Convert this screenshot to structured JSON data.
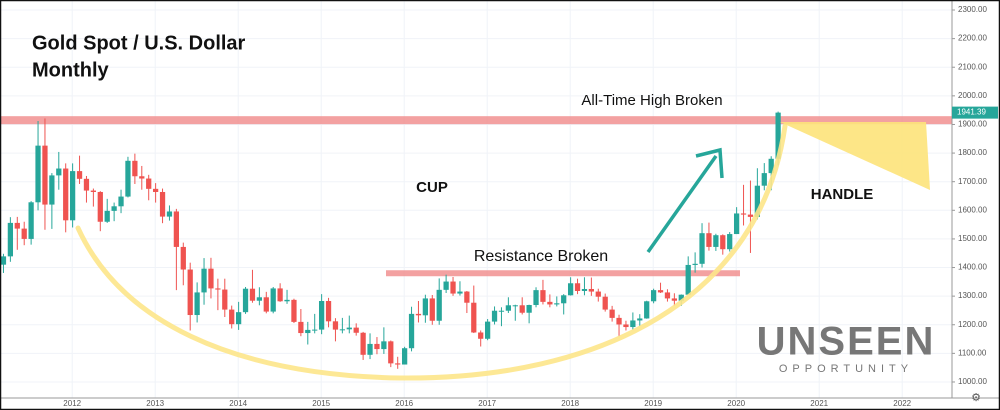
{
  "chart_data": {
    "type": "candlestick",
    "title": "Gold Spot / U.S. Dollar",
    "subtitle": "Monthly",
    "up_color": "#26a69a",
    "down_color": "#ef5350",
    "open": [
      1410,
      1439,
      1556,
      1536,
      1500,
      1628,
      1826,
      1620,
      1722,
      1746,
      1565,
      1737,
      1710,
      1669,
      1664,
      1560,
      1598,
      1614,
      1648,
      1773,
      1719,
      1711,
      1675,
      1664,
      1578,
      1596,
      1472,
      1393,
      1234,
      1313,
      1396,
      1327,
      1323,
      1253,
      1202,
      1244,
      1326,
      1284,
      1296,
      1246,
      1327,
      1282,
      1287,
      1210,
      1171,
      1182,
      1183,
      1283,
      1212,
      1183,
      1184,
      1190,
      1172,
      1095,
      1133,
      1115,
      1142,
      1065,
      1061,
      1118,
      1238,
      1233,
      1292,
      1214,
      1322,
      1351,
      1309,
      1316,
      1277,
      1173,
      1151,
      1211,
      1249,
      1249,
      1268,
      1268,
      1242,
      1269,
      1321,
      1280,
      1271,
      1275,
      1303,
      1345,
      1318,
      1325,
      1316,
      1298,
      1253,
      1224,
      1201,
      1192,
      1215,
      1222,
      1282,
      1321,
      1313,
      1292,
      1284,
      1305,
      1409,
      1413,
      1520,
      1472,
      1513,
      1464,
      1517,
      1589,
      1585,
      1577,
      1686,
      1730,
      1780
    ],
    "high": [
      1448,
      1576,
      1577,
      1560,
      1632,
      1912,
      1921,
      1730,
      1804,
      1764,
      1764,
      1791,
      1720,
      1676,
      1667,
      1640,
      1627,
      1672,
      1787,
      1798,
      1755,
      1724,
      1695,
      1676,
      1617,
      1605,
      1487,
      1417,
      1348,
      1433,
      1434,
      1361,
      1361,
      1267,
      1280,
      1332,
      1392,
      1331,
      1315,
      1332,
      1345,
      1322,
      1291,
      1255,
      1210,
      1238,
      1307,
      1294,
      1223,
      1224,
      1232,
      1205,
      1175,
      1170,
      1157,
      1191,
      1145,
      1088,
      1123,
      1263,
      1283,
      1305,
      1304,
      1362,
      1375,
      1367,
      1352,
      1318,
      1337,
      1180,
      1220,
      1264,
      1261,
      1296,
      1270,
      1296,
      1270,
      1331,
      1357,
      1306,
      1299,
      1307,
      1366,
      1361,
      1366,
      1365,
      1326,
      1309,
      1266,
      1235,
      1214,
      1243,
      1237,
      1284,
      1326,
      1347,
      1324,
      1310,
      1306,
      1439,
      1453,
      1555,
      1557,
      1518,
      1516,
      1524,
      1611,
      1689,
      1704,
      1747,
      1765,
      1789,
      1945
    ],
    "low": [
      1381,
      1420,
      1462,
      1478,
      1480,
      1600,
      1532,
      1535,
      1672,
      1523,
      1540,
      1692,
      1627,
      1613,
      1527,
      1556,
      1562,
      1590,
      1645,
      1692,
      1672,
      1635,
      1627,
      1555,
      1564,
      1321,
      1338,
      1180,
      1208,
      1270,
      1292,
      1251,
      1227,
      1187,
      1182,
      1238,
      1277,
      1268,
      1240,
      1240,
      1280,
      1273,
      1206,
      1160,
      1131,
      1170,
      1167,
      1191,
      1142,
      1170,
      1170,
      1162,
      1077,
      1080,
      1097,
      1098,
      1052,
      1046,
      1061,
      1107,
      1208,
      1207,
      1200,
      1200,
      1311,
      1301,
      1302,
      1241,
      1171,
      1124,
      1146,
      1201,
      1195,
      1241,
      1214,
      1236,
      1205,
      1261,
      1271,
      1261,
      1264,
      1236,
      1302,
      1307,
      1303,
      1301,
      1281,
      1246,
      1211,
      1160,
      1180,
      1182,
      1196,
      1221,
      1275,
      1311,
      1281,
      1266,
      1266,
      1305,
      1382,
      1400,
      1459,
      1458,
      1445,
      1456,
      1517,
      1547,
      1451,
      1568,
      1670,
      1670,
      1757
    ],
    "close": [
      1439,
      1556,
      1536,
      1500,
      1628,
      1826,
      1620,
      1722,
      1746,
      1565,
      1737,
      1710,
      1669,
      1664,
      1560,
      1598,
      1614,
      1648,
      1773,
      1719,
      1711,
      1675,
      1664,
      1578,
      1596,
      1472,
      1393,
      1234,
      1313,
      1396,
      1327,
      1323,
      1253,
      1202,
      1244,
      1326,
      1284,
      1296,
      1246,
      1327,
      1282,
      1287,
      1210,
      1171,
      1182,
      1183,
      1283,
      1212,
      1183,
      1184,
      1190,
      1172,
      1095,
      1133,
      1115,
      1142,
      1065,
      1061,
      1118,
      1238,
      1233,
      1292,
      1214,
      1322,
      1351,
      1309,
      1316,
      1277,
      1173,
      1151,
      1211,
      1249,
      1249,
      1268,
      1268,
      1242,
      1269,
      1321,
      1280,
      1271,
      1275,
      1303,
      1345,
      1318,
      1325,
      1316,
      1298,
      1253,
      1224,
      1201,
      1192,
      1215,
      1222,
      1282,
      1321,
      1313,
      1292,
      1284,
      1305,
      1409,
      1413,
      1520,
      1472,
      1513,
      1464,
      1517,
      1589,
      1585,
      1577,
      1686,
      1730,
      1780,
      1941.39
    ],
    "xlim": [
      2011.13,
      2022.6
    ],
    "xticks": [
      2012,
      2013,
      2014,
      2015,
      2016,
      2017,
      2018,
      2019,
      2020,
      2021,
      2022
    ],
    "ylim": [
      944,
      2335
    ],
    "yticks": [
      {
        "value": 1000,
        "label": "1000.00"
      },
      {
        "value": 1100,
        "label": "1100.00"
      },
      {
        "value": 1200,
        "label": "1200.00"
      },
      {
        "value": 1300,
        "label": "1300.00"
      },
      {
        "value": 1400,
        "label": "1400.00"
      },
      {
        "value": 1500,
        "label": "1500.00"
      },
      {
        "value": 1600,
        "label": "1600.00"
      },
      {
        "value": 1700,
        "label": "1700.00"
      },
      {
        "value": 1800,
        "label": "1800.00"
      },
      {
        "value": 1900,
        "label": "1900.00"
      },
      {
        "value": 2000,
        "label": "2000.00"
      },
      {
        "value": 2100,
        "label": "2100.00"
      },
      {
        "value": 2200,
        "label": "2200.00"
      },
      {
        "value": 2300,
        "label": "2300.00"
      }
    ],
    "grid": true,
    "last_price": {
      "value": 1941.39,
      "label": "1941.39"
    },
    "levels": [
      1915,
      1380
    ],
    "annotations": [
      "All-Time High Broken",
      "CUP",
      "Resistance Broken",
      "HANDLE"
    ],
    "logo": [
      "UNSEEN",
      "OPPORTUNITY"
    ]
  }
}
